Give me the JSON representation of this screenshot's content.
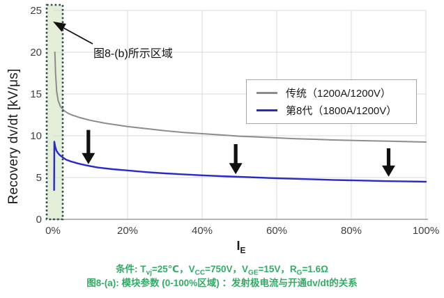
{
  "chart": {
    "y_axis_title": "Recovery dv/dt [kV/μs]",
    "x_axis_title_segments": [
      {
        "t": "I"
      },
      {
        "sub": "E"
      }
    ],
    "annotation_label": "图8-(b)所示区域"
  },
  "captions": {
    "conditions_segments": [
      {
        "t": "条件: T"
      },
      {
        "sub": "vj"
      },
      {
        "t": "=25℃，V"
      },
      {
        "sub": "CC"
      },
      {
        "t": "=750V，V"
      },
      {
        "sub": "GE"
      },
      {
        "t": "=15V，R"
      },
      {
        "sub": "G"
      },
      {
        "t": "=1.6Ω"
      }
    ],
    "figure_caption": "图8-(a): 模块参数 (0-100%区域) ：发射极电流与开通dv/dt的关系"
  },
  "colors": {
    "caption_green": "#33ab66",
    "grid": "#d9d9d9",
    "axis": "#9e9e9e",
    "region_fill": "#e4efda",
    "region_border": "#2a4a44",
    "arrow_black": "#111111",
    "traditional_gray": "#8c8c8c",
    "gen8_blue": "#2929cc"
  },
  "chart_data": {
    "type": "line",
    "xlabel": "IE",
    "ylabel": "Recovery dv/dt [kV/μs]",
    "xlim_pct": [
      0,
      100
    ],
    "ylim": [
      0,
      25
    ],
    "xtick_labels": [
      "0%",
      "20%",
      "40%",
      "60%",
      "80%",
      "100%"
    ],
    "ytick_values": [
      0,
      5,
      10,
      15,
      20,
      25
    ],
    "grid": true,
    "legend_position": "upper right",
    "series": [
      {
        "name": "传统（1200A/1200V）",
        "color": "#8c8c8c",
        "width": 2,
        "points": [
          [
            0.5,
            20.0
          ],
          [
            0.7,
            17.5
          ],
          [
            1.0,
            15.3
          ],
          [
            1.4,
            14.2
          ],
          [
            2,
            13.5
          ],
          [
            3,
            13.0
          ],
          [
            4,
            12.7
          ],
          [
            5,
            12.5
          ],
          [
            7,
            12.2
          ],
          [
            10,
            11.85
          ],
          [
            14,
            11.5
          ],
          [
            20,
            11.1
          ],
          [
            25,
            10.85
          ],
          [
            30,
            10.6
          ],
          [
            35,
            10.4
          ],
          [
            40,
            10.25
          ],
          [
            45,
            10.1
          ],
          [
            50,
            9.95
          ],
          [
            55,
            9.85
          ],
          [
            60,
            9.75
          ],
          [
            65,
            9.65
          ],
          [
            70,
            9.58
          ],
          [
            75,
            9.5
          ],
          [
            80,
            9.45
          ],
          [
            85,
            9.4
          ],
          [
            90,
            9.35
          ],
          [
            95,
            9.3
          ],
          [
            100,
            9.25
          ]
        ]
      },
      {
        "name": "第8代（1800A/1200V）",
        "color": "#2929cc",
        "width": 2.4,
        "points": [
          [
            0.3,
            3.5
          ],
          [
            0.33,
            6.5
          ],
          [
            0.36,
            9.3
          ],
          [
            0.6,
            8.7
          ],
          [
            0.9,
            8.25
          ],
          [
            1.3,
            7.95
          ],
          [
            1.8,
            7.7
          ],
          [
            2.5,
            7.45
          ],
          [
            3.5,
            7.15
          ],
          [
            5,
            6.9
          ],
          [
            7,
            6.65
          ],
          [
            9,
            6.45
          ],
          [
            12,
            6.2
          ],
          [
            16,
            6.0
          ],
          [
            20,
            5.85
          ],
          [
            25,
            5.65
          ],
          [
            30,
            5.5
          ],
          [
            35,
            5.38
          ],
          [
            40,
            5.27
          ],
          [
            45,
            5.17
          ],
          [
            50,
            5.08
          ],
          [
            55,
            5.0
          ],
          [
            60,
            4.92
          ],
          [
            65,
            4.85
          ],
          [
            70,
            4.78
          ],
          [
            75,
            4.72
          ],
          [
            80,
            4.67
          ],
          [
            85,
            4.62
          ],
          [
            90,
            4.57
          ],
          [
            95,
            4.53
          ],
          [
            100,
            4.5
          ]
        ]
      }
    ],
    "annotations": {
      "highlight_region": {
        "label": "图8-(b)所示区域",
        "x_range_pct": [
          0,
          2.6
        ]
      },
      "down_arrows": [
        {
          "x_pct": 9.5,
          "v_from": 10.7,
          "v_to": 6.6
        },
        {
          "x_pct": 49.0,
          "v_from": 9.0,
          "v_to": 5.4
        },
        {
          "x_pct": 90.0,
          "v_from": 8.5,
          "v_to": 5.1
        }
      ]
    }
  }
}
